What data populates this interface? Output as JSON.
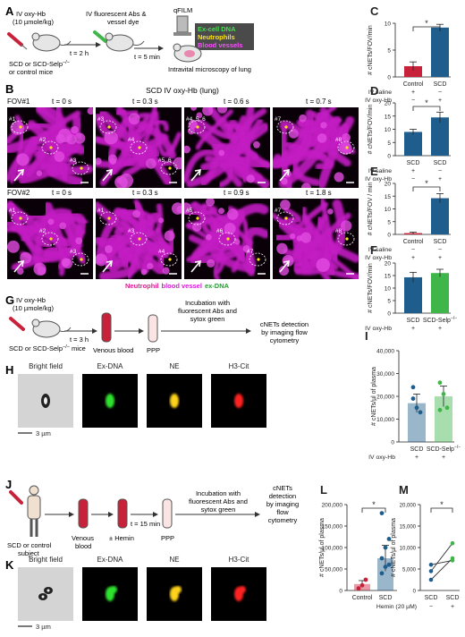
{
  "colors": {
    "red": "#c8213a",
    "blue": "#1f5d8c",
    "green": "#3fb54a",
    "magenta": "#d21fd2",
    "dark": "#222222"
  },
  "panelA": {
    "letter": "A",
    "drug": "IV oxy-Hb",
    "dose": "(10 µmole/kg)",
    "mice": "SCD or SCD-Selp",
    "mice_sup": "−/−",
    "mice_line2": "or control mice",
    "t1": "t = 2 h",
    "step2_l1": "IV fluorescent Abs &",
    "step2_l2": "vessel dye",
    "t2": "t = 5 min",
    "qfilm": "qFILM",
    "legend": [
      "Ex-cell DNA",
      "Neutrophils",
      "Blood vessels"
    ],
    "intravital": "Intravital microscopy of lung"
  },
  "panelB": {
    "letter": "B",
    "title": "SCD IV oxy-Hb (lung)",
    "row1_label": "FOV#1",
    "row1_times": [
      "t = 0 s",
      "t = 0.3 s",
      "t = 0.6 s",
      "t = 0.7 s"
    ],
    "row2_label": "FOV#2",
    "row2_times": [
      "t = 0 s",
      "t = 0.3 s",
      "t = 0.9 s",
      "t = 1.8 s"
    ],
    "tags_r1": [
      [
        "#1",
        "#2",
        "#3"
      ],
      [
        "#3",
        "#4",
        "#5, 6"
      ],
      [
        "#4, 5, 6"
      ],
      [
        "#7",
        "#8"
      ]
    ],
    "tags_r2": [
      [
        "#1",
        "#2",
        "#3"
      ],
      [
        "#1",
        "#3",
        "#4"
      ],
      [
        "#5",
        "#6",
        "#7"
      ],
      [
        "#7",
        "#8"
      ]
    ],
    "legend": [
      "Neutrophil",
      "blood vessel",
      "ex-DNA"
    ]
  },
  "panelC": {
    "letter": "C",
    "ylabel": "# cNETs/FOV/min",
    "ymax": 10,
    "ticks": [
      "0",
      "5",
      "10"
    ],
    "bars": [
      {
        "value": 2,
        "err": 0.8,
        "color": "red"
      },
      {
        "value": 9.2,
        "err": 0.6,
        "color": "blue"
      }
    ],
    "xcats": [
      "Control",
      "SCD"
    ],
    "rows": [
      {
        "label": "IV saline",
        "vals": [
          "+",
          "−"
        ]
      },
      {
        "label": "IV oxy-Hb",
        "vals": [
          "−",
          "+"
        ]
      }
    ],
    "sig": "*"
  },
  "panelD": {
    "letter": "D",
    "ylabel": "# cNETs/FOV/min",
    "ymax": 20,
    "ticks": [
      "0",
      "5",
      "10",
      "15",
      "20"
    ],
    "bars": [
      {
        "value": 9,
        "err": 1,
        "color": "blue"
      },
      {
        "value": 14.5,
        "err": 2,
        "color": "blue"
      }
    ],
    "xcats": [
      "SCD",
      "SCD"
    ],
    "rows": [
      {
        "label": "IV saline",
        "vals": [
          "+",
          "−"
        ]
      },
      {
        "label": "IV oxy-Hb",
        "vals": [
          "−",
          "+"
        ]
      }
    ],
    "sig": "*"
  },
  "panelE": {
    "letter": "E",
    "ylabel": "# cNETs/FOV / min",
    "ymax": 20,
    "ticks": [
      "0",
      "5",
      "10",
      "15",
      "20"
    ],
    "bars": [
      {
        "value": 0.5,
        "err": 0.4,
        "color": "red"
      },
      {
        "value": 14.2,
        "err": 1.8,
        "color": "blue"
      }
    ],
    "xcats": [
      "Control",
      "SCD"
    ],
    "rows": [
      {
        "label": "IV saline",
        "vals": [
          "−",
          "−"
        ]
      },
      {
        "label": "IV oxy-Hb",
        "vals": [
          "+",
          "+"
        ]
      }
    ],
    "sig": "*"
  },
  "panelF": {
    "letter": "F",
    "ylabel": "# cNETs/FOV/min",
    "ymax": 20,
    "ticks": [
      "0",
      "5",
      "10",
      "15",
      "20"
    ],
    "bars": [
      {
        "value": 14.3,
        "err": 2,
        "color": "blue"
      },
      {
        "value": 16,
        "err": 1.5,
        "color": "green"
      }
    ],
    "xcats": [
      "SCD",
      "SCD-Selp"
    ],
    "xcat2_sup": "−/−",
    "rows": [
      {
        "label": "IV oxy-Hb",
        "vals": [
          "+",
          "+"
        ]
      }
    ]
  },
  "panelG": {
    "letter": "G",
    "drug": "IV oxy-Hb",
    "dose": "(10 µmole/kg)",
    "mice": "SCD or SCD-Selp",
    "mice_sup": "−/−",
    "mice_tail": "mice",
    "t": "t = 3 h",
    "venous": "Venous blood",
    "ppp": "PPP",
    "incub": [
      "Incubation with",
      "fluorescent Abs and",
      "sytox green"
    ],
    "detect": [
      "cNETs detection",
      "by imaging flow",
      "cytometry"
    ]
  },
  "panelH": {
    "letter": "H",
    "labels": [
      "Bright field",
      "Ex-DNA",
      "NE",
      "H3-Cit"
    ],
    "scale": "3 µm"
  },
  "panelI": {
    "letter": "I",
    "ylabel": "# cNETs/µl of plasma",
    "ymax": 40000,
    "ticks": [
      "0",
      "10,000",
      "20,000",
      "30,000",
      "40,000"
    ],
    "bars": [
      {
        "value": 17000,
        "err": 4000,
        "color": "blue"
      },
      {
        "value": 20000,
        "err": 4500,
        "color": "green"
      }
    ],
    "points": [
      [
        24000,
        15000,
        13000,
        19000
      ],
      [
        26000,
        21000,
        15000,
        14000
      ]
    ],
    "xcats": [
      "SCD",
      "SCD-Selp"
    ],
    "xcat2_sup": "−/−",
    "rows": [
      {
        "label": "IV oxy-Hb",
        "vals": [
          "+",
          "+"
        ]
      }
    ]
  },
  "panelJ": {
    "letter": "J",
    "subject": [
      "SCD or control",
      "subject"
    ],
    "venous": [
      "Venous",
      "blood"
    ],
    "hemin": "± Hemin",
    "t": "t = 15 min",
    "ppp": "PPP",
    "incub": [
      "Incubation with",
      "fluorescent Abs and",
      "sytox green"
    ],
    "detect": [
      "cNETs",
      "detection",
      "by imaging",
      "flow",
      "cytometry"
    ]
  },
  "panelK": {
    "letter": "K",
    "labels": [
      "Bright field",
      "Ex-DNA",
      "NE",
      "H3-Cit"
    ],
    "scale": "3 µm"
  },
  "panelL": {
    "letter": "L",
    "ylabel": "# cNETs/µl of plasma",
    "ymax": 200000,
    "ticks": [
      "0",
      "50,000",
      "100,000",
      "150,000",
      "200,000"
    ],
    "bars": [
      {
        "value": 15000,
        "err": 8000,
        "color": "red"
      },
      {
        "value": 75000,
        "err": 30000,
        "color": "blue"
      }
    ],
    "points": [
      [
        5000,
        12000,
        25000
      ],
      [
        40000,
        55000,
        60000,
        75000,
        100000,
        120000,
        180000
      ]
    ],
    "xcats": [
      "Control",
      "SCD"
    ],
    "sig": "*"
  },
  "panelM": {
    "letter": "M",
    "ylabel": "# cNETs/µl of plasma",
    "ymax": 20000,
    "ticks": [
      "0",
      "5,000",
      "10,000",
      "15,000",
      "20,000"
    ],
    "pairs": [
      [
        2500,
        7500
      ],
      [
        4500,
        11000
      ],
      [
        6000,
        7000
      ]
    ],
    "xcats": [
      "SCD",
      "SCD"
    ],
    "row_label": "Hemin (20 µM)",
    "row_vals": [
      "−",
      "+"
    ],
    "sig": "*"
  }
}
